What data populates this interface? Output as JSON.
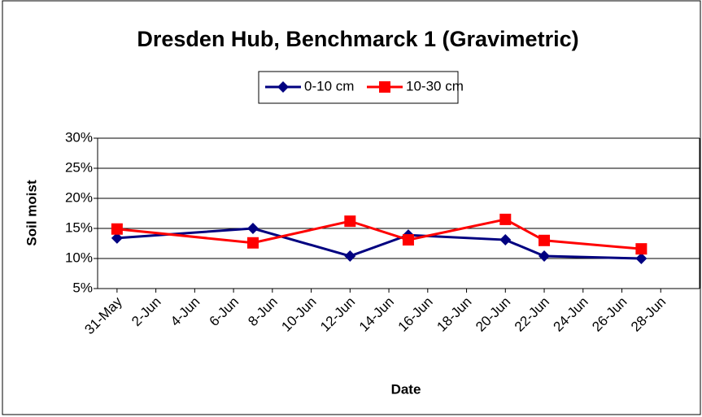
{
  "chart_data": {
    "type": "line",
    "title": "Dresden Hub, Benchmarck 1 (Gravimetric)",
    "ylabel": "Soil moist",
    "xlabel": "Date",
    "x": [
      "31-May",
      "7-Jun",
      "12-Jun",
      "15-Jun",
      "20-Jun",
      "22-Jun",
      "27-Jun"
    ],
    "series": [
      {
        "name": "0-10 cm",
        "color": "#000080",
        "marker": "diamond",
        "values": [
          13.4,
          15,
          10.4,
          13.9,
          13.1,
          10.4,
          10
        ]
      },
      {
        "name": "10-30 cm",
        "color": "#ff0000",
        "marker": "square",
        "values": [
          14.9,
          12.6,
          16.2,
          13.1,
          16.5,
          13,
          11.6
        ]
      }
    ],
    "xlim": [
      "30-May",
      "30-Jun"
    ],
    "xticks": [
      "31-May",
      "2-Jun",
      "4-Jun",
      "6-Jun",
      "8-Jun",
      "10-Jun",
      "12-Jun",
      "14-Jun",
      "16-Jun",
      "18-Jun",
      "20-Jun",
      "22-Jun",
      "24-Jun",
      "26-Jun",
      "28-Jun"
    ],
    "ylim": [
      5,
      30
    ],
    "yticks": [
      {
        "value": 5,
        "label": "5%"
      },
      {
        "value": 10,
        "label": "10%"
      },
      {
        "value": 15,
        "label": "15%"
      },
      {
        "value": 20,
        "label": "20%"
      },
      {
        "value": 25,
        "label": "25%"
      },
      {
        "value": 30,
        "label": "30%"
      }
    ],
    "grid": true,
    "legend": "top"
  }
}
